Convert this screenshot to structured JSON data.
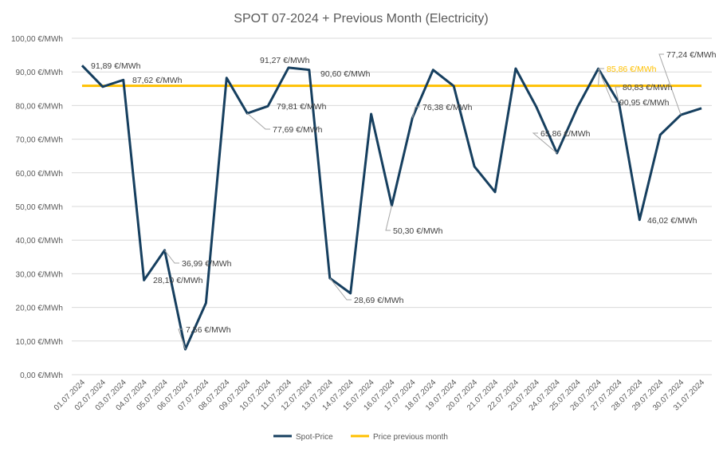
{
  "chart_data": {
    "type": "line",
    "title": "SPOT 07-2024 + Previous Month (Electricity)",
    "xlabel": "",
    "ylabel": "",
    "ylim": [
      0,
      100
    ],
    "y_ticks": [
      "0,00 €/MWh",
      "10,00 €/MWh",
      "20,00 €/MWh",
      "30,00 €/MWh",
      "40,00 €/MWh",
      "50,00 €/MWh",
      "60,00 €/MWh",
      "70,00 €/MWh",
      "80,00 €/MWh",
      "90,00 €/MWh",
      "100,00 €/MWh"
    ],
    "grid": true,
    "legend_placement": "bottom",
    "categories": [
      "01.07.2024",
      "02.07.2024",
      "03.07.2024",
      "04.07.2024",
      "05.07.2024",
      "06.07.2024",
      "07.07.2024",
      "08.07.2024",
      "09.07.2024",
      "10.07.2024",
      "11.07.2024",
      "12.07.2024",
      "13.07.2024",
      "14.07.2024",
      "15.07.2024",
      "16.07.2024",
      "17.07.2024",
      "18.07.2024",
      "19.07.2024",
      "20.07.2024",
      "21.07.2024",
      "22.07.2024",
      "23.07.2024",
      "24.07.2024",
      "25.07.2024",
      "26.07.2024",
      "27.07.2024",
      "28.07.2024",
      "29.07.2024",
      "30.07.2024",
      "31.07.2024"
    ],
    "series": [
      {
        "name": "Spot-Price",
        "color": "#163f5f",
        "values": [
          91.89,
          85.6,
          87.62,
          28.1,
          36.99,
          7.56,
          21.3,
          88.2,
          77.69,
          79.81,
          91.27,
          90.6,
          28.69,
          24.2,
          77.5,
          50.3,
          76.38,
          90.6,
          85.8,
          61.9,
          54.3,
          91.0,
          79.6,
          65.86,
          79.6,
          90.95,
          80.83,
          46.02,
          71.3,
          77.24,
          79.2
        ]
      },
      {
        "name": "Price previous month",
        "color": "#ffc000",
        "values": [
          85.86,
          85.86,
          85.86,
          85.86,
          85.86,
          85.86,
          85.86,
          85.86,
          85.86,
          85.86,
          85.86,
          85.86,
          85.86,
          85.86,
          85.86,
          85.86,
          85.86,
          85.86,
          85.86,
          85.86,
          85.86,
          85.86,
          85.86,
          85.86,
          85.86,
          85.86,
          85.86,
          85.86,
          85.86,
          85.86,
          85.86
        ]
      }
    ],
    "data_labels": [
      {
        "day": "01.07.2024",
        "text": "91,89 €/MWh"
      },
      {
        "day": "03.07.2024",
        "text": "87,62 €/MWh"
      },
      {
        "day": "04.07.2024",
        "text": "28,10 €/MWh"
      },
      {
        "day": "05.07.2024",
        "text": "36,99 €/MWh"
      },
      {
        "day": "06.07.2024",
        "text": "7,56 €/MWh"
      },
      {
        "day": "09.07.2024",
        "text": "77,69 €/MWh"
      },
      {
        "day": "10.07.2024",
        "text": "79,81 €/MWh"
      },
      {
        "day": "11.07.2024",
        "text": "91,27 €/MWh"
      },
      {
        "day": "12.07.2024",
        "text": "90,60 €/MWh"
      },
      {
        "day": "13.07.2024",
        "text": "28,69 €/MWh"
      },
      {
        "day": "16.07.2024",
        "text": "50,30 €/MWh"
      },
      {
        "day": "17.07.2024",
        "text": "76,38 €/MWh"
      },
      {
        "day": "24.07.2024",
        "text": "65,86 €/MWh"
      },
      {
        "day": "26.07.2024",
        "text": "90,95 €/MWh"
      },
      {
        "day": "27.07.2024",
        "text": "80,83 €/MWh"
      },
      {
        "day": "28.07.2024",
        "text": "46,02 €/MWh"
      },
      {
        "day": "30.07.2024",
        "text": "77,24 €/MWh"
      },
      {
        "day": "26.07.2024",
        "text": "85,86 €/MWh",
        "series": "Price previous month"
      }
    ]
  }
}
